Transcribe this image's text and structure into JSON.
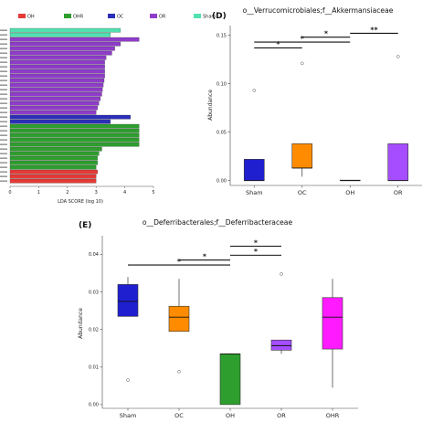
{
  "chart_data": [
    {
      "id": "lefse",
      "type": "bar",
      "orientation": "horizontal",
      "xlabel": "LDA SCORE (log 10)",
      "xlim": [
        0,
        5
      ],
      "xticks": [
        0,
        1,
        2,
        3,
        4,
        5
      ],
      "legend": {
        "placement": "top",
        "entries": [
          {
            "name": "OH",
            "color": "#e53935"
          },
          {
            "name": "OHR",
            "color": "#2e9e2e"
          },
          {
            "name": "OC",
            "color": "#2b2fb8"
          },
          {
            "name": "OR",
            "color": "#8e3cc9"
          },
          {
            "name": "Sham",
            "color": "#52e0b0"
          }
        ]
      },
      "bars": [
        {
          "group": "Sham",
          "value": 3.85
        },
        {
          "group": "Sham",
          "value": 3.5
        },
        {
          "group": "OR",
          "value": 4.5
        },
        {
          "group": "OR",
          "value": 3.85
        },
        {
          "group": "OR",
          "value": 3.65
        },
        {
          "group": "OR",
          "value": 3.55
        },
        {
          "group": "OR",
          "value": 3.35
        },
        {
          "group": "OR",
          "value": 3.3
        },
        {
          "group": "OR",
          "value": 3.3
        },
        {
          "group": "OR",
          "value": 3.3
        },
        {
          "group": "OR",
          "value": 3.3
        },
        {
          "group": "OR",
          "value": 3.28
        },
        {
          "group": "OR",
          "value": 3.25
        },
        {
          "group": "OR",
          "value": 3.22
        },
        {
          "group": "OR",
          "value": 3.2
        },
        {
          "group": "OR",
          "value": 3.15
        },
        {
          "group": "OR",
          "value": 3.1
        },
        {
          "group": "OR",
          "value": 3.05
        },
        {
          "group": "OR",
          "value": 3.0
        },
        {
          "group": "OC",
          "value": 4.2
        },
        {
          "group": "OC",
          "value": 3.5
        },
        {
          "group": "OHR",
          "value": 4.5
        },
        {
          "group": "OHR",
          "value": 4.5
        },
        {
          "group": "OHR",
          "value": 4.5
        },
        {
          "group": "OHR",
          "value": 4.5
        },
        {
          "group": "OHR",
          "value": 4.5
        },
        {
          "group": "OHR",
          "value": 3.2
        },
        {
          "group": "OHR",
          "value": 3.1
        },
        {
          "group": "OHR",
          "value": 3.05
        },
        {
          "group": "OHR",
          "value": 3.05
        },
        {
          "group": "OHR",
          "value": 3.0
        },
        {
          "group": "OH",
          "value": 3.05
        },
        {
          "group": "OH",
          "value": 3.0
        },
        {
          "group": "OH",
          "value": 3.0
        }
      ]
    },
    {
      "id": "D",
      "type": "box",
      "panel_label": "(D)",
      "title": "o__Verrucomicrobiales;f__Akkermansiaceae",
      "ylabel": "Abundance",
      "ylim": [
        -0.005,
        0.16
      ],
      "yticks": [
        0.0,
        0.05,
        0.1,
        0.15
      ],
      "ytick_labels": [
        "0.00",
        "0.05",
        "0.10",
        "0.15"
      ],
      "categories": [
        "Sham",
        "OC",
        "OH",
        "OR"
      ],
      "boxes": [
        {
          "name": "Sham",
          "color": "#1f1fd0",
          "q1": 0.0,
          "median": 0.0,
          "q3": 0.022,
          "whisker_low": 0.0,
          "whisker_high": 0.022,
          "outliers": [
            0.093
          ]
        },
        {
          "name": "OC",
          "color": "#ff8c00",
          "q1": 0.013,
          "median": 0.013,
          "q3": 0.038,
          "whisker_low": 0.004,
          "whisker_high": 0.038,
          "outliers": [
            0.121
          ]
        },
        {
          "name": "OH",
          "color": "#2e9e2e",
          "q1": 0.0,
          "median": 0.0,
          "q3": 0.0005,
          "whisker_low": 0.0,
          "whisker_high": 0.0005,
          "outliers": []
        },
        {
          "name": "OR",
          "color": "#a64dff",
          "q1": 0.0,
          "median": 0.0,
          "q3": 0.038,
          "whisker_low": 0.0,
          "whisker_high": 0.038,
          "outliers": [
            0.128
          ]
        }
      ],
      "significance": [
        {
          "from": "OC",
          "to": "OH",
          "y": 0.148,
          "label": "*"
        },
        {
          "from": "Sham",
          "to": "OH",
          "y": 0.143,
          "label": "*"
        },
        {
          "from": "Sham",
          "to": "OC",
          "y": 0.137,
          "label": "*"
        },
        {
          "from": "OH",
          "to": "OR",
          "y": 0.152,
          "label": "**"
        }
      ]
    },
    {
      "id": "E",
      "type": "box",
      "panel_label": "(E)",
      "title": "o__Deferribacterales;f__Deferribacteraceae",
      "ylabel": "Abundance",
      "ylim": [
        -0.001,
        0.045
      ],
      "yticks": [
        0.0,
        0.01,
        0.02,
        0.03,
        0.04
      ],
      "ytick_labels": [
        "0.00",
        "0.01",
        "0.02",
        "0.03",
        "0.04"
      ],
      "categories": [
        "Sham",
        "OC",
        "OH",
        "OR",
        "OHR"
      ],
      "boxes": [
        {
          "name": "Sham",
          "color": "#1f1fd0",
          "q1": 0.0235,
          "median": 0.0275,
          "q3": 0.032,
          "whisker_low": 0.0235,
          "whisker_high": 0.034,
          "outliers": [
            0.0065
          ]
        },
        {
          "name": "OC",
          "color": "#ff8c00",
          "q1": 0.0195,
          "median": 0.0233,
          "q3": 0.0262,
          "whisker_low": 0.0195,
          "whisker_high": 0.0335,
          "outliers": [
            0.0088
          ]
        },
        {
          "name": "OH",
          "color": "#2e9e2e",
          "q1": 0.0,
          "median": 0.0135,
          "q3": 0.0135,
          "whisker_low": 0.0,
          "whisker_high": 0.0137,
          "outliers": []
        },
        {
          "name": "OR",
          "color": "#a64dff",
          "q1": 0.0145,
          "median": 0.0157,
          "q3": 0.0172,
          "whisker_low": 0.0135,
          "whisker_high": 0.0172,
          "outliers": [
            0.0348
          ]
        },
        {
          "name": "OHR",
          "color": "#ff1aff",
          "q1": 0.0148,
          "median": 0.0233,
          "q3": 0.0285,
          "whisker_low": 0.0045,
          "whisker_high": 0.0335,
          "outliers": []
        }
      ],
      "significance": [
        {
          "from": "OH",
          "to": "OR",
          "y": 0.0422,
          "label": "*"
        },
        {
          "from": "OH",
          "to": "OR",
          "y": 0.0398,
          "label": "*",
          "from_offset": 0.0,
          "to_offset": 0.0
        },
        {
          "from": "OC",
          "to": "OH",
          "y": 0.0385,
          "label": "*"
        },
        {
          "from": "Sham",
          "to": "OH",
          "y": 0.0372,
          "label": "*"
        }
      ]
    }
  ]
}
